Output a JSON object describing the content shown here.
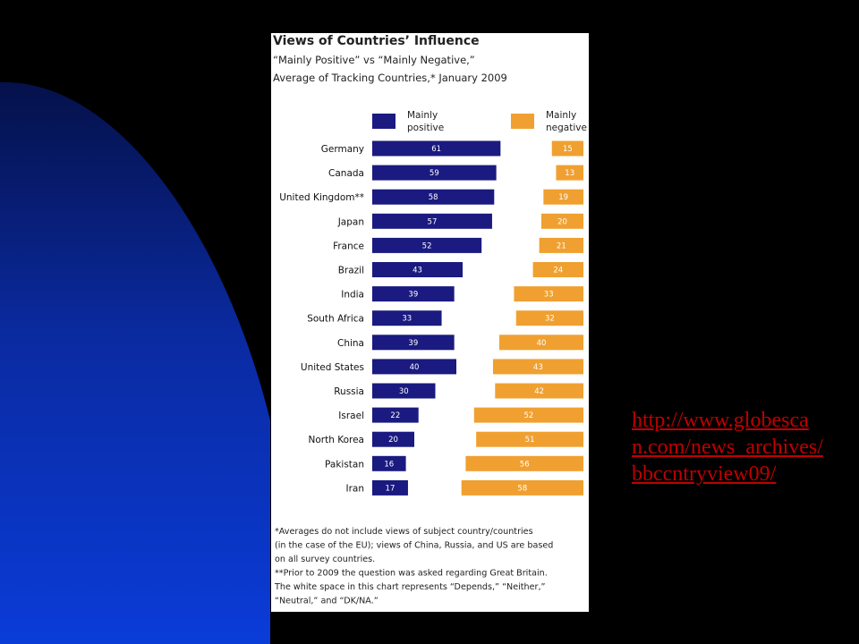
{
  "slide": {
    "link_text": "http://www.globescan.com/news_archives/bbccntryview09/"
  },
  "colors": {
    "positive": "#1a1a80",
    "negative": "#f0a030",
    "slide_background": "#000000",
    "blue_shape_light": "#0a3cd8",
    "blue_shape_dark": "#05114a",
    "link": "#c00000"
  },
  "chart_data": {
    "type": "bar",
    "orientation": "horizontal",
    "title": "Views of Countries’ Influence",
    "subtitle_lines": [
      "“Mainly Positive” vs “Mainly Negative,”",
      "Average of Tracking Countries,* January 2009"
    ],
    "categories": [
      "Germany",
      "Canada",
      "United Kingdom**",
      "Japan",
      "France",
      "Brazil",
      "India",
      "South Africa",
      "China",
      "United States",
      "Russia",
      "Israel",
      "North Korea",
      "Pakistan",
      "Iran"
    ],
    "series": [
      {
        "name": "Mainly positive",
        "legend_lines": [
          "Mainly",
          "positive"
        ],
        "values": [
          61,
          59,
          58,
          57,
          52,
          43,
          39,
          33,
          39,
          40,
          30,
          22,
          20,
          16,
          17
        ]
      },
      {
        "name": "Mainly negative",
        "legend_lines": [
          "Mainly",
          "negative"
        ],
        "values": [
          15,
          13,
          19,
          20,
          21,
          24,
          33,
          32,
          40,
          43,
          42,
          52,
          51,
          56,
          58
        ]
      }
    ],
    "legend_position": "top",
    "grid": false,
    "footnotes": [
      "*Averages do not include views of subject country/countries",
      "(in the case of the EU); views of China, Russia, and US are based",
      "on all survey countries.",
      "**Prior to 2009 the question was asked regarding Great Britain.",
      "The white space in this chart represents “Depends,” “Neither,”",
      "“Neutral,” and “DK/NA.”"
    ]
  }
}
